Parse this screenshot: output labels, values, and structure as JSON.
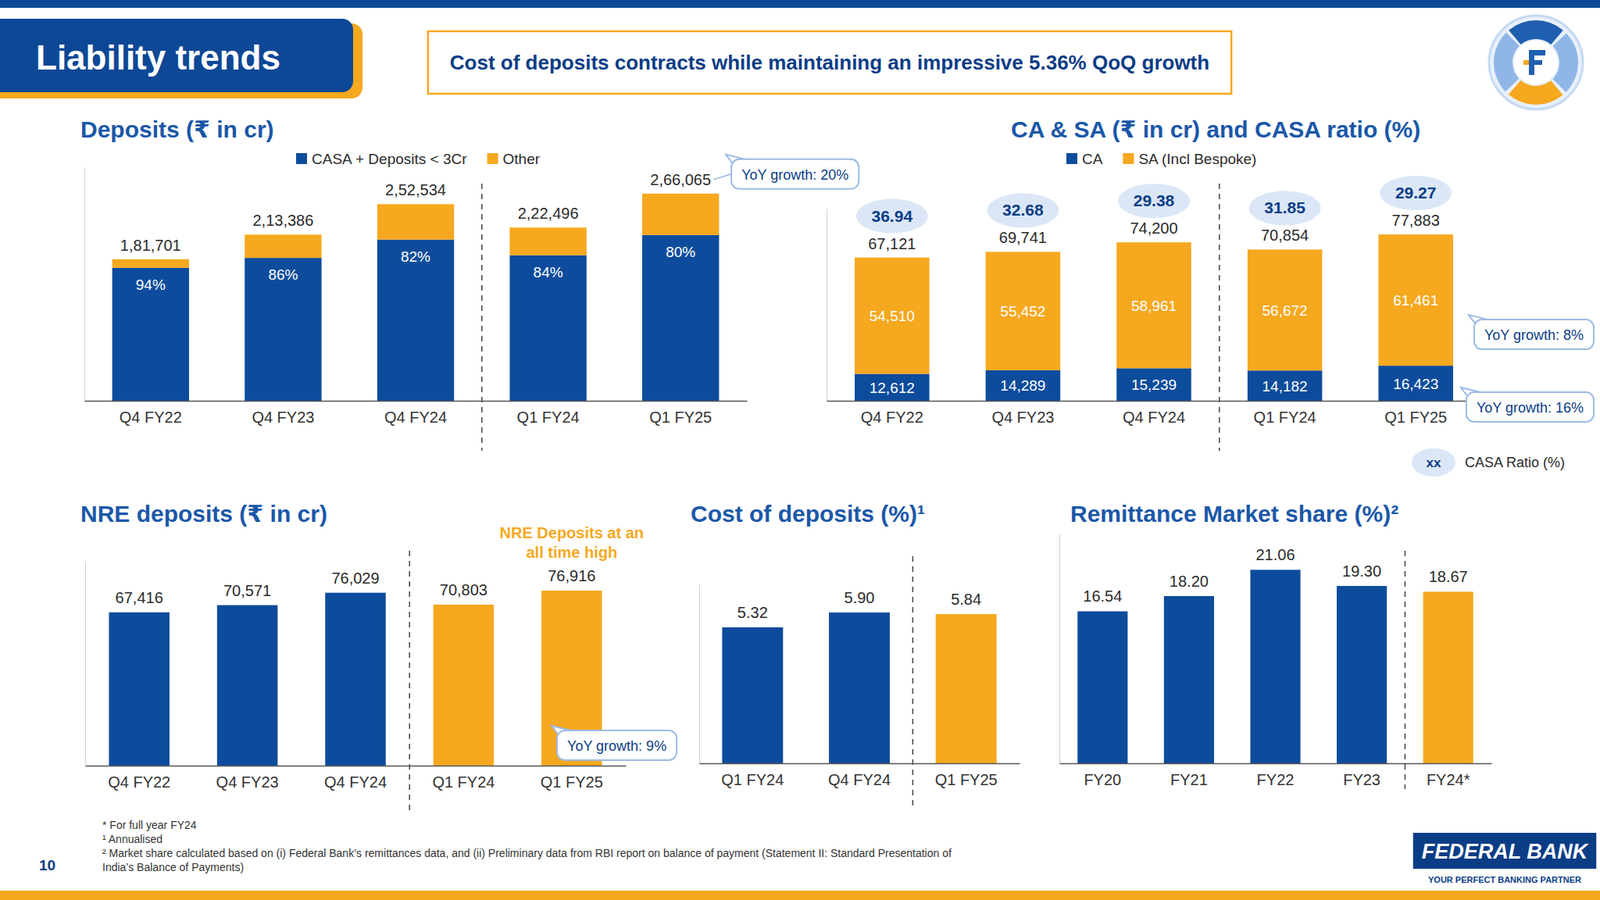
{
  "header": {
    "title": "Liability trends",
    "subtitle": "Cost of deposits contracts while maintaining an impressive 5.36% QoQ growth"
  },
  "chart_data": [
    {
      "type": "bar",
      "title": "Deposits (₹ in cr)",
      "stacked": true,
      "legend": "top",
      "tick_labels": "x",
      "categories": [
        "Q4 FY22",
        "Q4 FY23",
        "Q4 FY24",
        "Q1 FY24",
        "Q1 FY25"
      ],
      "series": [
        {
          "name": "CASA + Deposits < 3Cr",
          "color": "#0d4c9c",
          "values": [
            170799,
            183512,
            207078,
            186897,
            212852
          ],
          "share_labels": [
            "94%",
            "86%",
            "82%",
            "84%",
            "80%"
          ]
        },
        {
          "name": "Other",
          "color": "#f6a81f",
          "values": [
            10902,
            29874,
            45456,
            35599,
            53213
          ]
        }
      ],
      "totals": [
        181701,
        213386,
        252534,
        222496,
        266065
      ],
      "total_labels": [
        "1,81,701",
        "2,13,386",
        "2,52,534",
        "2,22,496",
        "2,66,065"
      ],
      "annotations": [
        "YoY growth: 20%"
      ],
      "ylim": [
        0,
        300000
      ]
    },
    {
      "type": "bar",
      "title": "CA & SA (₹ in cr) and CASA ratio (%)",
      "stacked": true,
      "legend": "top",
      "tick_labels": "x",
      "data_labels": true,
      "categories": [
        "Q4 FY22",
        "Q4 FY23",
        "Q4 FY24",
        "Q1 FY24",
        "Q1 FY25"
      ],
      "series": [
        {
          "name": "CA",
          "color": "#0d4c9c",
          "values": [
            12612,
            14289,
            15239,
            14182,
            16423
          ],
          "value_labels": [
            "12,612",
            "14,289",
            "15,239",
            "14,182",
            "16,423"
          ]
        },
        {
          "name": "SA (Incl Bespoke)",
          "color": "#f6a81f",
          "values": [
            54510,
            55452,
            58961,
            56672,
            61461
          ],
          "value_labels": [
            "54,510",
            "55,452",
            "58,961",
            "56,672",
            "61,461"
          ]
        }
      ],
      "totals": [
        67121,
        69741,
        74200,
        70854,
        77883
      ],
      "total_labels": [
        "67,121",
        "69,741",
        "74,200",
        "70,854",
        "77,883"
      ],
      "casa_ratio": {
        "name": "CASA Ratio (%)",
        "symbol": "xx",
        "values": [
          36.94,
          32.68,
          29.38,
          31.85,
          29.27
        ]
      },
      "annotations": [
        "YoY growth: 8%",
        "YoY growth: 16%"
      ],
      "ylim": [
        0,
        90000
      ]
    },
    {
      "type": "bar",
      "title": "NRE deposits (₹ in cr)",
      "tick_labels": "x",
      "data_labels": true,
      "categories": [
        "Q4 FY22",
        "Q4 FY23",
        "Q4 FY24",
        "Q1 FY24",
        "Q1 FY25"
      ],
      "values": [
        67416,
        70571,
        76029,
        70803,
        76916
      ],
      "value_labels": [
        "67,416",
        "70,571",
        "76,029",
        "70,803",
        "76,916"
      ],
      "colors": [
        "#0d4c9c",
        "#0d4c9c",
        "#0d4c9c",
        "#f6a81f",
        "#f6a81f"
      ],
      "annotations": [
        "NRE Deposits at an all time high",
        "YoY growth: 9%"
      ],
      "ylim": [
        0,
        90000
      ]
    },
    {
      "type": "bar",
      "title": "Cost of deposits (%)¹",
      "tick_labels": "x",
      "data_labels": true,
      "categories": [
        "Q1 FY24",
        "Q4 FY24",
        "Q1 FY25"
      ],
      "values": [
        5.32,
        5.9,
        5.84
      ],
      "value_labels": [
        "5.32",
        "5.90",
        "5.84"
      ],
      "colors": [
        "#0d4c9c",
        "#0d4c9c",
        "#f6a81f"
      ],
      "ylim": [
        0,
        7
      ]
    },
    {
      "type": "bar",
      "title": "Remittance Market share (%)²",
      "tick_labels": "x",
      "data_labels": true,
      "categories": [
        "FY20",
        "FY21",
        "FY22",
        "FY23",
        "FY24*"
      ],
      "values": [
        16.54,
        18.2,
        21.06,
        19.3,
        18.67
      ],
      "value_labels": [
        "16.54",
        "18.20",
        "21.06",
        "19.30",
        "18.67"
      ],
      "colors": [
        "#0d4c9c",
        "#0d4c9c",
        "#0d4c9c",
        "#0d4c9c",
        "#f6a81f"
      ],
      "ylim": [
        0,
        25
      ]
    }
  ],
  "footnotes": [
    "* For full year FY24",
    "¹ Annualised",
    "² Market share calculated based on (i) Federal Bank’s remittances data, and (ii) Preliminary data from RBI report on balance of payment (Statement II: Standard Presentation of India’s Balance of Payments)"
  ],
  "page_number": 10,
  "brand": {
    "name": "FEDERAL BANK",
    "tagline": "YOUR PERFECT BANKING PARTNER"
  }
}
